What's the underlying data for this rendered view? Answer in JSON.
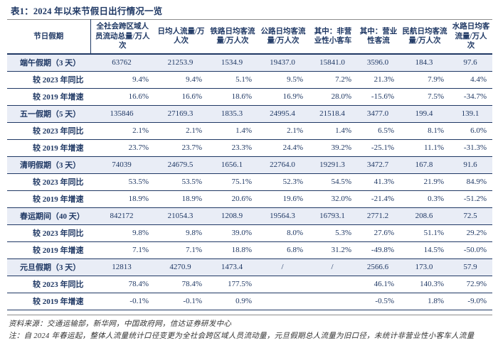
{
  "title": "表1：2024 年以来节假日出行情况一览",
  "colors": {
    "navy": "#1f3864",
    "rowbg": "#e9edf6",
    "rule": "#8c8c8c",
    "footer": "#333333"
  },
  "table": {
    "columns": [
      "节日假期",
      "全社会跨区域人员流动总量/万人次",
      "日均人流量/万人次",
      "铁路日均客流量/万人次",
      "公路日均客流量/万人次",
      "其中：非营业性小客车",
      "其中：营业性客流",
      "民航日均客流量/万人次",
      "水路日均客流量/万人次"
    ],
    "rows": [
      {
        "label": "端午假期（3 天）",
        "type": "holiday",
        "values": [
          "63762",
          "21253.9",
          "1534.9",
          "19437.0",
          "15841.0",
          "3596.0",
          "184.3",
          "97.6"
        ]
      },
      {
        "label": "较 2023 年同比",
        "type": "sub",
        "values": [
          "9.4%",
          "9.4%",
          "5.1%",
          "9.5%",
          "7.2%",
          "21.3%",
          "7.9%",
          "4.4%"
        ]
      },
      {
        "label": "较 2019 年增速",
        "type": "sub",
        "values": [
          "16.6%",
          "16.6%",
          "18.6%",
          "16.9%",
          "28.0%",
          "-15.6%",
          "7.5%",
          "-34.7%"
        ]
      },
      {
        "label": "五一假期（5 天）",
        "type": "holiday",
        "values": [
          "135846",
          "27169.3",
          "1835.3",
          "24995.4",
          "21518.4",
          "3477.0",
          "199.4",
          "139.1"
        ]
      },
      {
        "label": "较 2023 年同比",
        "type": "sub",
        "values": [
          "2.1%",
          "2.1%",
          "1.4%",
          "2.1%",
          "1.4%",
          "6.5%",
          "8.1%",
          "6.0%"
        ]
      },
      {
        "label": "较 2019 年增速",
        "type": "sub",
        "values": [
          "23.7%",
          "23.7%",
          "23.3%",
          "24.4%",
          "39.2%",
          "-25.1%",
          "11.1%",
          "-31.3%"
        ]
      },
      {
        "label": "清明假期（3 天）",
        "type": "holiday",
        "values": [
          "74039",
          "24679.5",
          "1656.1",
          "22764.0",
          "19291.3",
          "3472.7",
          "167.8",
          "91.6"
        ]
      },
      {
        "label": "较 2023 年同比",
        "type": "sub",
        "values": [
          "53.5%",
          "53.5%",
          "75.1%",
          "52.3%",
          "54.5%",
          "41.3%",
          "21.9%",
          "84.9%"
        ]
      },
      {
        "label": "较 2019 年增速",
        "type": "sub",
        "values": [
          "18.9%",
          "18.9%",
          "20.6%",
          "19.6%",
          "32.0%",
          "-21.4%",
          "0.3%",
          "-51.2%"
        ]
      },
      {
        "label": "春运期间（40 天）",
        "type": "holiday",
        "values": [
          "842172",
          "21054.3",
          "1208.9",
          "19564.3",
          "16793.1",
          "2771.2",
          "208.6",
          "72.5"
        ]
      },
      {
        "label": "较 2023 年同比",
        "type": "sub",
        "values": [
          "9.8%",
          "9.8%",
          "39.0%",
          "8.0%",
          "5.3%",
          "27.6%",
          "51.1%",
          "29.2%"
        ]
      },
      {
        "label": "较 2019 年增速",
        "type": "sub",
        "values": [
          "7.1%",
          "7.1%",
          "18.8%",
          "6.8%",
          "31.2%",
          "-49.8%",
          "14.5%",
          "-50.0%"
        ]
      },
      {
        "label": "元旦假期（3 天）",
        "type": "holiday",
        "values": [
          "12813",
          "4270.9",
          "1473.4",
          "/",
          "/",
          "2566.6",
          "173.0",
          "57.9"
        ]
      },
      {
        "label": "较 2023 年同比",
        "type": "sub",
        "values": [
          "78.4%",
          "78.4%",
          "177.5%",
          "",
          "",
          "46.1%",
          "140.3%",
          "72.9%"
        ]
      },
      {
        "label": "较 2019 年增速",
        "type": "sub",
        "values": [
          "-0.1%",
          "-0.1%",
          "0.9%",
          "",
          "",
          "-0.5%",
          "1.8%",
          "-9.0%"
        ]
      }
    ]
  },
  "footer": {
    "source": "资料来源：交通运输部，新华网，中国政府网，信达证券研发中心",
    "note": "注：自 2024 年春运起，整体人流量统计口径变更为全社会跨区域人员流动量，元旦假期总人流量为旧口径，未统计非营业性小客车人流量"
  }
}
